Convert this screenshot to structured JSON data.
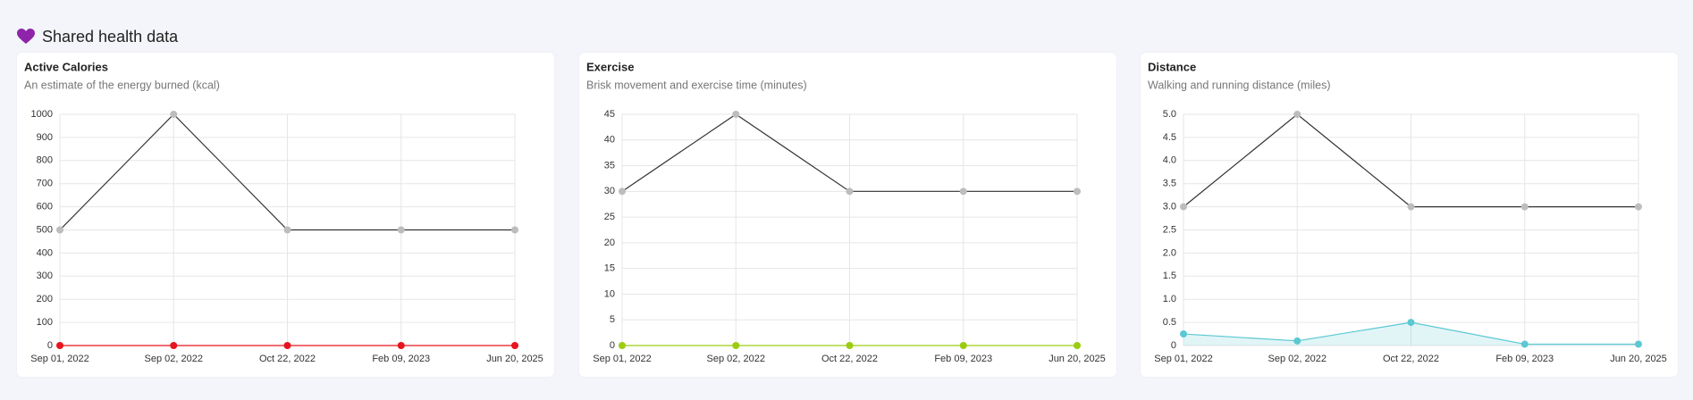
{
  "header": {
    "title": "Shared health data"
  },
  "chart_data": [
    {
      "type": "line",
      "title": "Active Calories",
      "subtitle": "An estimate of the energy burned (kcal)",
      "categories": [
        "Sep 01, 2022",
        "Sep 02, 2022",
        "Oct 22, 2022",
        "Feb 09, 2023",
        "Jun 20, 2025"
      ],
      "series": [
        {
          "color": "#333333",
          "marker_color": "#bdbdbd",
          "values": [
            500,
            1000,
            500,
            500,
            500
          ]
        },
        {
          "color": "#e8141e",
          "marker_color": "#e8141e",
          "values": [
            0,
            0,
            0,
            0,
            0
          ]
        }
      ],
      "ylim": [
        0,
        1000
      ],
      "yticks": [
        0,
        100,
        200,
        300,
        400,
        500,
        600,
        700,
        800,
        900,
        1000
      ],
      "grid": true
    },
    {
      "type": "line",
      "title": "Exercise",
      "subtitle": "Brisk movement and exercise time (minutes)",
      "categories": [
        "Sep 01, 2022",
        "Sep 02, 2022",
        "Oct 22, 2022",
        "Feb 09, 2023",
        "Jun 20, 2025"
      ],
      "series": [
        {
          "color": "#333333",
          "marker_color": "#bdbdbd",
          "values": [
            30,
            45,
            30,
            30,
            30
          ]
        },
        {
          "color": "#9ccc10",
          "marker_color": "#9ccc10",
          "values": [
            0,
            0,
            0,
            0,
            0
          ]
        }
      ],
      "ylim": [
        0,
        45
      ],
      "yticks": [
        0,
        5,
        10,
        15,
        20,
        25,
        30,
        35,
        40,
        45
      ],
      "grid": true
    },
    {
      "type": "line",
      "title": "Distance",
      "subtitle": "Walking and running distance (miles)",
      "categories": [
        "Sep 01, 2022",
        "Sep 02, 2022",
        "Oct 22, 2022",
        "Feb 09, 2023",
        "Jun 20, 2025"
      ],
      "series": [
        {
          "color": "#333333",
          "marker_color": "#bdbdbd",
          "values": [
            3,
            5,
            3,
            3,
            3
          ]
        },
        {
          "color": "#5bc8d2",
          "marker_color": "#5bc8d2",
          "fill": true,
          "values": [
            0.25,
            0.1,
            0.5,
            0.03,
            0.03
          ]
        }
      ],
      "ylim": [
        0,
        5
      ],
      "yticks": [
        0,
        0.5,
        {
          "value": 1,
          "label": "1.0"
        },
        1.5,
        {
          "value": 2,
          "label": "2.0"
        },
        2.5,
        {
          "value": 3,
          "label": "3.0"
        },
        3.5,
        {
          "value": 4,
          "label": "4.0"
        },
        4.5,
        {
          "value": 5,
          "label": "5.0"
        }
      ],
      "grid": true
    }
  ]
}
